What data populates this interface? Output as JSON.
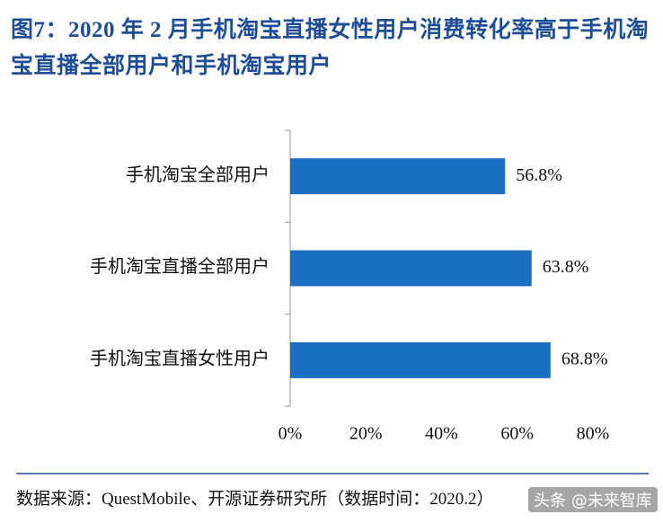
{
  "chart_data": {
    "type": "bar",
    "orientation": "horizontal",
    "title": "图7：2020 年 2 月手机淘宝直播女性用户消费转化率高于手机淘宝直播全部用户和手机淘宝用户",
    "categories": [
      "手机淘宝全部用户",
      "手机淘宝直播全部用户",
      "手机淘宝直播女性用户"
    ],
    "values": [
      56.8,
      63.8,
      68.8
    ],
    "value_labels": [
      "56.8%",
      "63.8%",
      "68.8%"
    ],
    "color": "#1b6fc2",
    "xlim": [
      0,
      80
    ],
    "xticks": [
      {
        "value": 0,
        "label": "0%"
      },
      {
        "value": 20,
        "label": "20%"
      },
      {
        "value": 40,
        "label": "40%"
      },
      {
        "value": 60,
        "label": "60%"
      },
      {
        "value": 80,
        "label": "80%"
      }
    ],
    "source": "数据来源：QuestMobile、开源证券研究所（数据时间：2020.2）",
    "watermark": "头条 @未来智库"
  }
}
